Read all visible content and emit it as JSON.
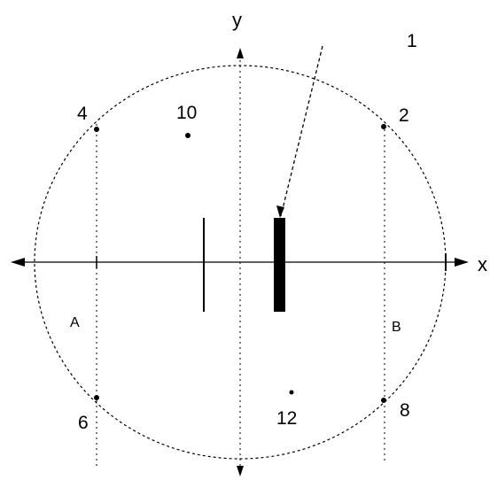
{
  "axes": {
    "x_label": "x",
    "y_label": "y"
  },
  "labels": {
    "n1": "1",
    "n2": "2",
    "n4": "4",
    "n6": "6",
    "n8": "8",
    "n10": "10",
    "n12": "12",
    "region_a": "A",
    "region_b": "B"
  },
  "colors": {
    "ink": "#000000",
    "background": "#ffffff"
  }
}
